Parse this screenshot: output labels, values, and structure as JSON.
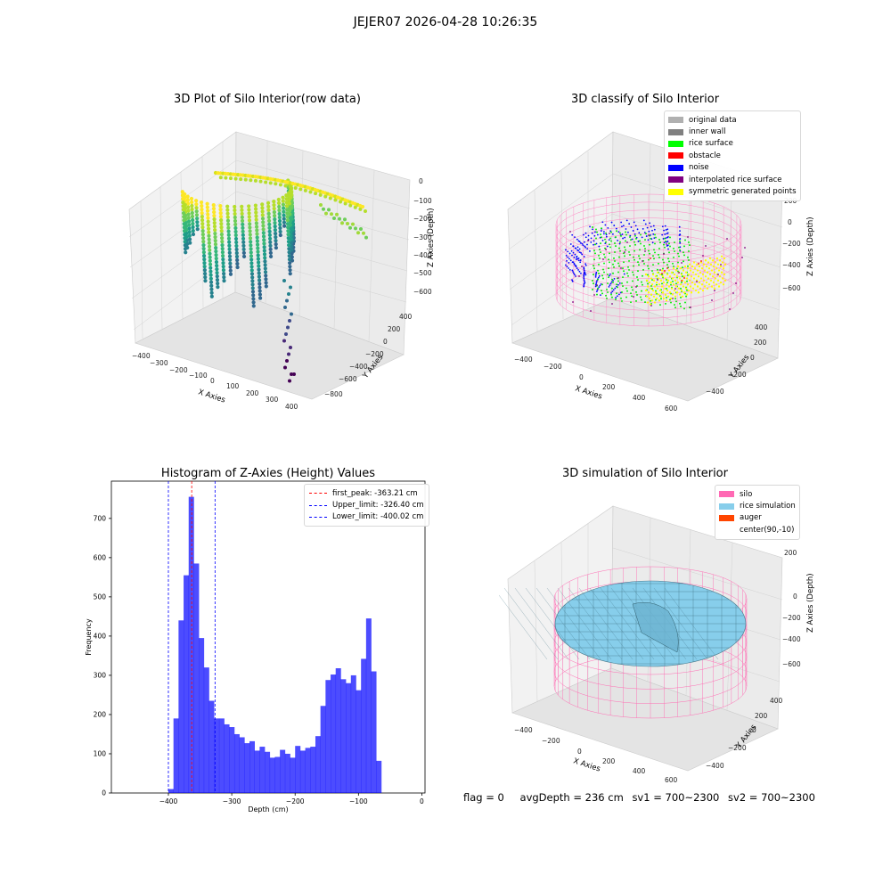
{
  "suptitle": "JEJER07 2026-04-28 10:26:35",
  "panels": {
    "raw": {
      "title": "3D Plot of Silo Interior(row data)",
      "xlabel": "X Axies",
      "ylabel": "Y Axies",
      "zlabel": "Z Axies (Depth)",
      "xticks": [
        "−400",
        "−300",
        "−200",
        "−100",
        "0",
        "100",
        "200",
        "300",
        "400"
      ],
      "yticks": [
        "400",
        "200",
        "0",
        "−200",
        "−400",
        "−600",
        "−800"
      ],
      "zticks": [
        "0",
        "−100",
        "−200",
        "−300",
        "−400",
        "−500",
        "−600"
      ]
    },
    "classify": {
      "title": "3D classify of Silo Interior",
      "xlabel": "X Axies",
      "ylabel": "Y Axies",
      "zlabel": "Z Axies (Depth)",
      "xticks": [
        "−400",
        "−200",
        "0",
        "200",
        "400",
        "600"
      ],
      "yticks": [
        "400",
        "200",
        "0",
        "−200",
        "−400"
      ],
      "zticks": [
        "200",
        "0",
        "−200",
        "−400",
        "−600"
      ],
      "legend": [
        {
          "label": "original data",
          "color": "#b0b0b0"
        },
        {
          "label": "inner wall",
          "color": "#808080"
        },
        {
          "label": "rice surface",
          "color": "#00ff00"
        },
        {
          "label": "obstacle",
          "color": "#ff0000"
        },
        {
          "label": "noise",
          "color": "#0000ff"
        },
        {
          "label": "interpolated rice surface",
          "color": "#800080"
        },
        {
          "label": "symmetric generated points",
          "color": "#ffff00"
        }
      ]
    },
    "simulation": {
      "title": "3D simulation of Silo Interior",
      "xlabel": "X Axies",
      "ylabel": "Y Axies",
      "zlabel": "Z Axies (Depth)",
      "xticks": [
        "−400",
        "−200",
        "0",
        "200",
        "400",
        "600"
      ],
      "yticks": [
        "400",
        "200",
        "0",
        "−200",
        "−400"
      ],
      "zticks": [
        "200",
        "0",
        "−200",
        "−400",
        "−600"
      ],
      "legend": [
        {
          "label": "silo",
          "color": "#ff69b4"
        },
        {
          "label": "rice simulation",
          "color": "#87ceeb"
        },
        {
          "label": "auger",
          "color": "#ff4500"
        },
        {
          "label": "center(90,-10)",
          "color": ""
        }
      ]
    }
  },
  "status": {
    "flag": "flag = 0",
    "avg_depth": "avgDepth = 236 cm",
    "sv1": "sv1 = 700~2300",
    "sv2": "sv2 = 700~2300"
  },
  "chart_data": {
    "type": "bar",
    "title": "Histogram of Z-Axies (Height) Values",
    "xlabel": "Depth (cm)",
    "ylabel": "Frequency",
    "xlim": [
      -490,
      5
    ],
    "ylim": [
      0,
      795
    ],
    "xticks": [
      -400,
      -300,
      -200,
      -100,
      0
    ],
    "yticks": [
      0,
      100,
      200,
      300,
      400,
      500,
      600,
      700
    ],
    "bar_color": "#0000ff",
    "bin_width": 8,
    "bin_starts": [
      -400,
      -392,
      -384,
      -376,
      -368,
      -360,
      -352,
      -344,
      -336,
      -328,
      -320,
      -312,
      -304,
      -296,
      -288,
      -280,
      -272,
      -264,
      -256,
      -248,
      -240,
      -232,
      -224,
      -216,
      -208,
      -200,
      -192,
      -184,
      -176,
      -168,
      -160,
      -152,
      -144,
      -136,
      -128,
      -120,
      -112,
      -104,
      -96,
      -88,
      -80,
      -72,
      -64,
      -56,
      -48,
      -40,
      -32,
      -24,
      -16
    ],
    "values": [
      10,
      190,
      440,
      555,
      755,
      585,
      395,
      320,
      235,
      190,
      190,
      175,
      168,
      150,
      142,
      127,
      132,
      108,
      118,
      105,
      90,
      92,
      110,
      100,
      90,
      120,
      108,
      115,
      118,
      145,
      222,
      288,
      302,
      318,
      290,
      280,
      300,
      262,
      342,
      445,
      310,
      82,
      0,
      0,
      0,
      0,
      0,
      0,
      0
    ],
    "lines": [
      {
        "label": "first_peak: -363.21 cm",
        "x": -363.21,
        "color": "#ff0000"
      },
      {
        "label": "Upper_limit: -326.40 cm",
        "x": -326.4,
        "color": "#0000ff"
      },
      {
        "label": "Lower_limit: -400.02 cm",
        "x": -400.02,
        "color": "#0000ff"
      }
    ]
  }
}
